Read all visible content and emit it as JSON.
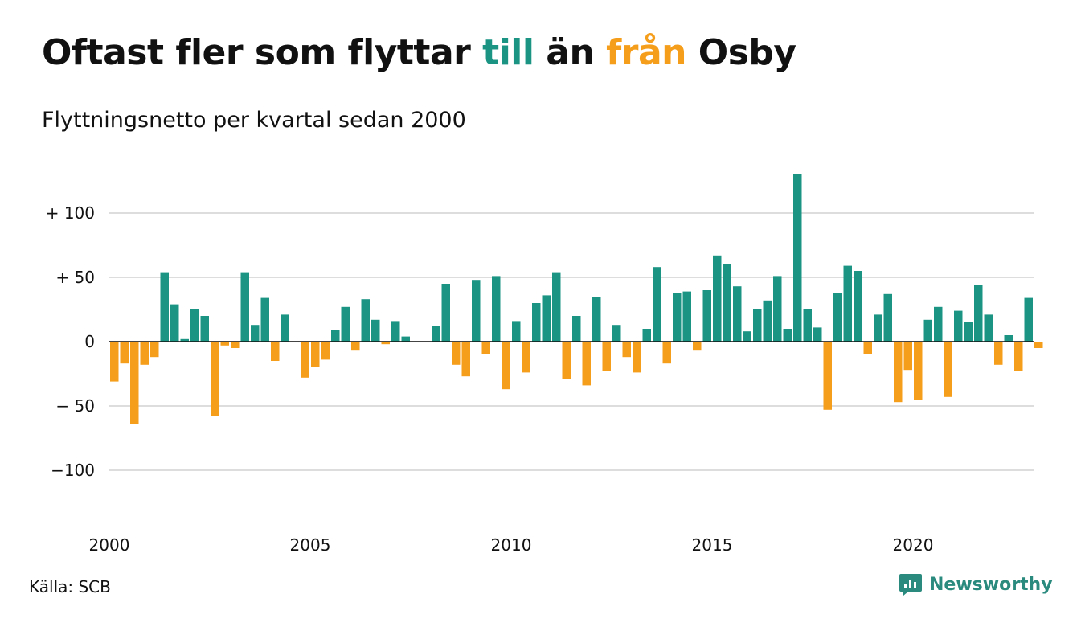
{
  "title": {
    "part1": "Oftast fler som flyttar ",
    "word_in": "till",
    "part2": " än ",
    "word_out": "från",
    "part3": " Osby"
  },
  "subtitle": "Flyttningsnetto per kvartal sedan 2000",
  "source": "Källa: SCB",
  "brand": {
    "name": "Newsworthy",
    "icon": "newsworthy-logo-icon"
  },
  "colors": {
    "positive": "#1b9484",
    "negative": "#f59e1b",
    "grid": "#dddddd"
  },
  "chart_data": {
    "type": "bar",
    "title": "Oftast fler som flyttar till än från Osby",
    "subtitle": "Flyttningsnetto per kvartal sedan 2000",
    "xlabel": "",
    "ylabel": "",
    "ylim": [
      -125,
      130
    ],
    "y_ticks": [
      {
        "value": 100,
        "label": "+ 100"
      },
      {
        "value": 50,
        "label": "+  50"
      },
      {
        "value": 0,
        "label": "0"
      },
      {
        "value": -50,
        "label": "− 50"
      },
      {
        "value": -100,
        "label": "−100"
      }
    ],
    "x_ticks": [
      "2000",
      "2005",
      "2010",
      "2015",
      "2020"
    ],
    "start_year": 2000,
    "grid": true,
    "legend": "none",
    "quarters": [
      "2000 Q1",
      "2000 Q2",
      "2000 Q3",
      "2000 Q4",
      "2001 Q1",
      "2001 Q2",
      "2001 Q3",
      "2001 Q4",
      "2002 Q1",
      "2002 Q2",
      "2002 Q3",
      "2002 Q4",
      "2003 Q1",
      "2003 Q2",
      "2003 Q3",
      "2003 Q4",
      "2004 Q1",
      "2004 Q2",
      "2004 Q3",
      "2004 Q4",
      "2005 Q1",
      "2005 Q2",
      "2005 Q3",
      "2005 Q4",
      "2006 Q1",
      "2006 Q2",
      "2006 Q3",
      "2006 Q4",
      "2007 Q1",
      "2007 Q2",
      "2007 Q3",
      "2007 Q4",
      "2008 Q1",
      "2008 Q2",
      "2008 Q3",
      "2008 Q4",
      "2009 Q1",
      "2009 Q2",
      "2009 Q3",
      "2009 Q4",
      "2010 Q1",
      "2010 Q2",
      "2010 Q3",
      "2010 Q4",
      "2011 Q1",
      "2011 Q2",
      "2011 Q3",
      "2011 Q4",
      "2012 Q1",
      "2012 Q2",
      "2012 Q3",
      "2012 Q4",
      "2013 Q1",
      "2013 Q2",
      "2013 Q3",
      "2013 Q4",
      "2014 Q1",
      "2014 Q2",
      "2014 Q3",
      "2014 Q4",
      "2015 Q1",
      "2015 Q2",
      "2015 Q3",
      "2015 Q4",
      "2016 Q1",
      "2016 Q2",
      "2016 Q3",
      "2016 Q4",
      "2017 Q1",
      "2017 Q2",
      "2017 Q3",
      "2017 Q4",
      "2018 Q1",
      "2018 Q2",
      "2018 Q3",
      "2018 Q4",
      "2019 Q1",
      "2019 Q2",
      "2019 Q3",
      "2019 Q4",
      "2020 Q1",
      "2020 Q2",
      "2020 Q3",
      "2020 Q4",
      "2021 Q1",
      "2021 Q2",
      "2021 Q3",
      "2021 Q4",
      "2022 Q1",
      "2022 Q2",
      "2022 Q3",
      "2022 Q4",
      "2023 Q1",
      "2023 Q2"
    ],
    "values": [
      -31,
      -17,
      -64,
      -18,
      -12,
      54,
      29,
      2,
      25,
      20,
      -58,
      -3,
      -5,
      54,
      13,
      34,
      -15,
      21,
      0,
      -28,
      -20,
      -14,
      9,
      27,
      -7,
      33,
      17,
      -2,
      16,
      4,
      0,
      0,
      12,
      45,
      -18,
      -27,
      48,
      -10,
      51,
      -37,
      16,
      -24,
      30,
      36,
      54,
      -29,
      20,
      -34,
      35,
      -23,
      13,
      -12,
      -24,
      10,
      58,
      -17,
      38,
      39,
      -7,
      40,
      67,
      60,
      43,
      8,
      25,
      32,
      51,
      10,
      130,
      25,
      11,
      -53,
      38,
      59,
      55,
      -10,
      21,
      37,
      -47,
      -22,
      -45,
      17,
      27,
      -43,
      24,
      15,
      44,
      21,
      -18,
      5,
      -23,
      34,
      -5,
      0
    ]
  }
}
